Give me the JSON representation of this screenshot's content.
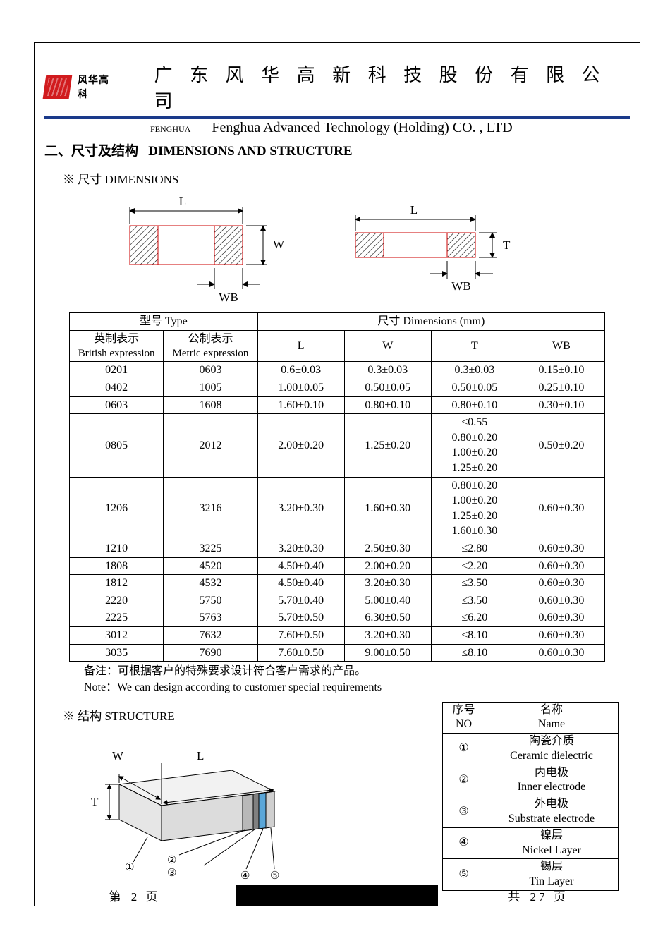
{
  "header": {
    "logo_text": "风华高科",
    "cn_title": "广 东 风 华 高 新 科 技 股 份 有 限 公 司",
    "fenghua_small": "FENGHUA",
    "en_title": "Fenghua Advanced Technology (Holding) CO. , LTD",
    "rule_color": "#1a3a8a",
    "logo_color": "#d11b1e"
  },
  "section": {
    "title_cn": "二、尺寸及结构",
    "title_en": "DIMENSIONS AND STRUCTURE",
    "dim_sub": "※ 尺寸 DIMENSIONS",
    "struct_sub": "※ 结构 STRUCTURE"
  },
  "diagram_labels": {
    "L": "L",
    "W": "W",
    "T": "T",
    "WB": "WB"
  },
  "table": {
    "header_type": "型号 Type",
    "header_dim": "尺寸     Dimensions     (mm)",
    "col_brit_cn": "英制表示",
    "col_brit_en": "British expression",
    "col_metric_cn": "公制表示",
    "col_metric_en": "Metric expression",
    "col_L": "L",
    "col_W": "W",
    "col_T": "T",
    "col_WB": "WB",
    "rows": [
      {
        "b": "0201",
        "m": "0603",
        "L": "0.6±0.03",
        "W": "0.3±0.03",
        "T": "0.3±0.03",
        "WB": "0.15±0.10"
      },
      {
        "b": "0402",
        "m": "1005",
        "L": "1.00±0.05",
        "W": "0.50±0.05",
        "T": "0.50±0.05",
        "WB": "0.25±0.10"
      },
      {
        "b": "0603",
        "m": "1608",
        "L": "1.60±0.10",
        "W": "0.80±0.10",
        "T": "0.80±0.10",
        "WB": "0.30±0.10"
      },
      {
        "b": "0805",
        "m": "2012",
        "L": "2.00±0.20",
        "W": "1.25±0.20",
        "T": "≤0.55\n0.80±0.20\n1.00±0.20\n1.25±0.20",
        "WB": "0.50±0.20"
      },
      {
        "b": "1206",
        "m": "3216",
        "L": "3.20±0.30",
        "W": "1.60±0.30",
        "T": "0.80±0.20\n1.00±0.20\n1.25±0.20\n1.60±0.30",
        "WB": "0.60±0.30"
      },
      {
        "b": "1210",
        "m": "3225",
        "L": "3.20±0.30",
        "W": "2.50±0.30",
        "T": "≤2.80",
        "WB": "0.60±0.30"
      },
      {
        "b": "1808",
        "m": "4520",
        "L": "4.50±0.40",
        "W": "2.00±0.20",
        "T": "≤2.20",
        "WB": "0.60±0.30"
      },
      {
        "b": "1812",
        "m": "4532",
        "L": "4.50±0.40",
        "W": "3.20±0.30",
        "T": "≤3.50",
        "WB": "0.60±0.30"
      },
      {
        "b": "2220",
        "m": "5750",
        "L": "5.70±0.40",
        "W": "5.00±0.40",
        "T": "≤3.50",
        "WB": "0.60±0.30"
      },
      {
        "b": "2225",
        "m": "5763",
        "L": "5.70±0.50",
        "W": "6.30±0.50",
        "T": "≤6.20",
        "WB": "0.60±0.30"
      },
      {
        "b": "3012",
        "m": "7632",
        "L": "7.60±0.50",
        "W": "3.20±0.30",
        "T": "≤8.10",
        "WB": "0.60±0.30"
      },
      {
        "b": "3035",
        "m": "7690",
        "L": "7.60±0.50",
        "W": "9.00±0.50",
        "T": "≤8.10",
        "WB": "0.60±0.30"
      }
    ]
  },
  "notes": {
    "cn": "备注：可根据客户的特殊要求设计符合客户需求的产品。",
    "en": "Note：We can design according to customer special requirements"
  },
  "structure": {
    "hdr_no_cn": "序号",
    "hdr_no_en": "NO",
    "hdr_name_cn": "名称",
    "hdr_name_en": "Name",
    "items": [
      {
        "no": "①",
        "cn": "陶瓷介质",
        "en": "Ceramic   dielectric"
      },
      {
        "no": "②",
        "cn": "内电极",
        "en": "Inner   electrode"
      },
      {
        "no": "③",
        "cn": "外电极",
        "en": "Substrate   electrode"
      },
      {
        "no": "④",
        "cn": "镍层",
        "en": "Nickel Layer"
      },
      {
        "no": "⑤",
        "cn": "锡层",
        "en": "Tin Layer"
      }
    ],
    "diagram_colors": {
      "body": "#e6e6e6",
      "inner": "#9b9b9b",
      "outer": "#5a5a5a",
      "nickel": "#4aa0d8",
      "tin": "#d0d0d0",
      "edge": "#000000"
    }
  },
  "footer": {
    "left_pre": "第",
    "page_cur": "2",
    "left_post": "页",
    "right_pre": "共",
    "page_total": "27",
    "right_post": "页"
  },
  "style": {
    "text_color": "#000000",
    "background": "#ffffff",
    "font_main": "Times New Roman / SimSun",
    "title_fontsize": 26,
    "body_fontsize": 16
  }
}
